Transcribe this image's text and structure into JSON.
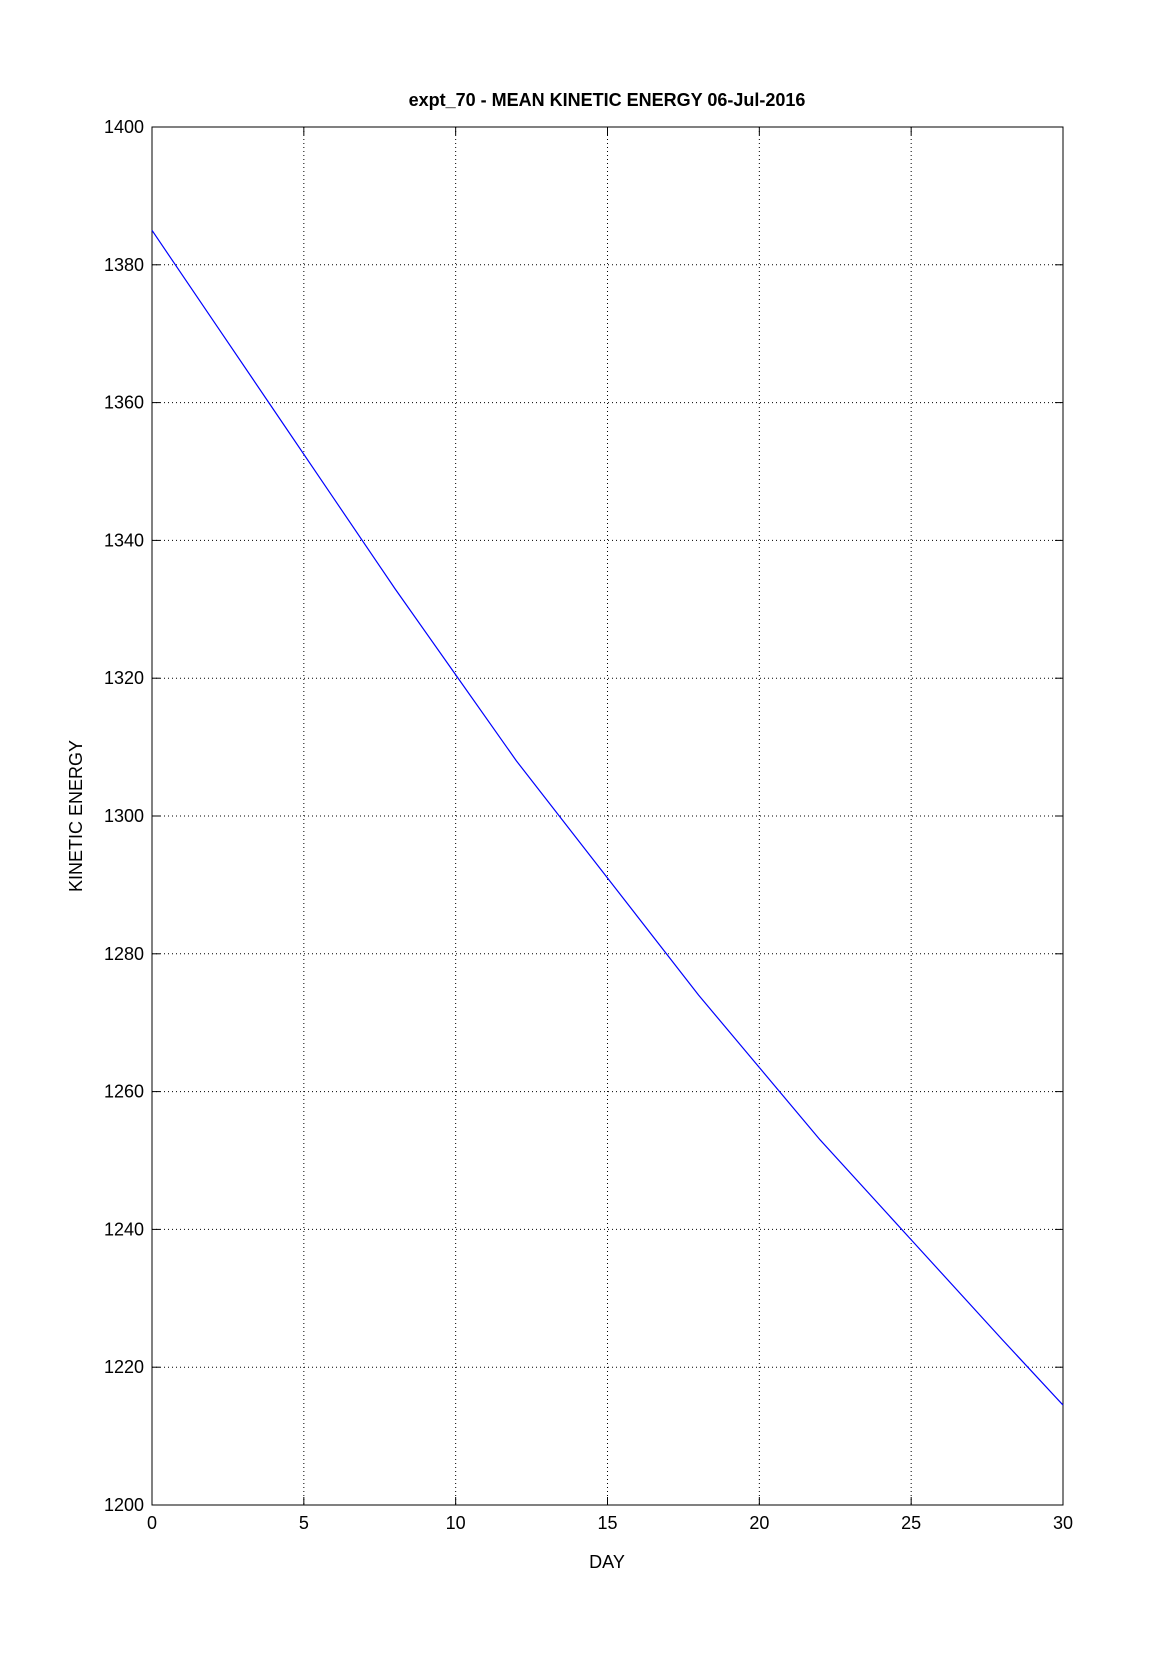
{
  "chart_data": {
    "type": "line",
    "title": "expt_70 - MEAN KINETIC ENERGY 06-Jul-2016",
    "x_label": "DAY",
    "y_label": "KINETIC ENERGY",
    "x": [
      0,
      2,
      4,
      6,
      8,
      10,
      12,
      15,
      18,
      20,
      22,
      25,
      28,
      30
    ],
    "series": [
      {
        "color": "#0000ff",
        "values": [
          1385,
          1372,
          1359,
          1346,
          1333,
          1320.5,
          1308,
          1291,
          1274,
          1263.5,
          1253,
          1238.5,
          1224,
          1214.5
        ]
      }
    ],
    "xlim": [
      0,
      30
    ],
    "xticks": [
      0,
      5,
      10,
      15,
      20,
      25,
      30
    ],
    "ylim": [
      1200,
      1400
    ],
    "yticks": [
      1200,
      1220,
      1240,
      1260,
      1280,
      1300,
      1320,
      1340,
      1360,
      1380,
      1400
    ],
    "grid": true
  }
}
